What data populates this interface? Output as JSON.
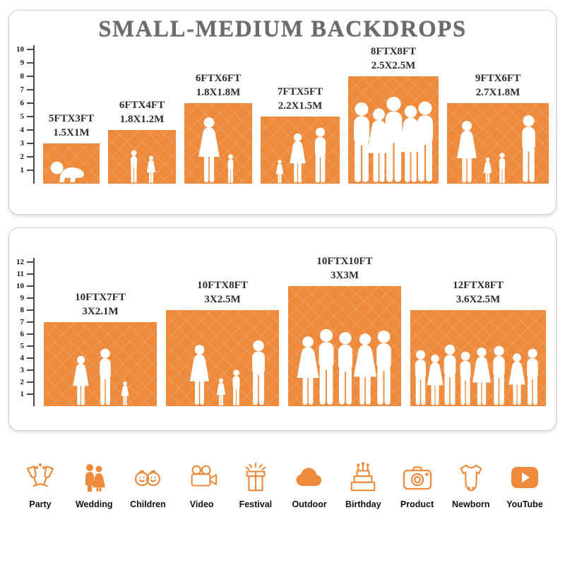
{
  "title": "SMALL-MEDIUM BACKDROPS",
  "accent_color": "#ED8A3C",
  "panels": [
    {
      "ruler": [
        "10",
        "9",
        "8",
        "7",
        "6",
        "5",
        "4",
        "3",
        "2",
        "1"
      ],
      "blocks": [
        {
          "size_ft": "5FTX3FT",
          "size_m": "1.5X1M"
        },
        {
          "size_ft": "6FTX4FT",
          "size_m": "1.8X1.2M"
        },
        {
          "size_ft": "6FTX6FT",
          "size_m": "1.8X1.8M"
        },
        {
          "size_ft": "7FTX5FT",
          "size_m": "2.2X1.5M"
        },
        {
          "size_ft": "8FTX8FT",
          "size_m": "2.5X2.5M"
        },
        {
          "size_ft": "9FTX6FT",
          "size_m": "2.7X1.8M"
        }
      ]
    },
    {
      "ruler": [
        "12",
        "11",
        "10",
        "9",
        "8",
        "7",
        "6",
        "5",
        "4",
        "3",
        "2",
        "1"
      ],
      "blocks": [
        {
          "size_ft": "10FTX7FT",
          "size_m": "3X2.1M"
        },
        {
          "size_ft": "10FTX8FT",
          "size_m": "3X2.5M"
        },
        {
          "size_ft": "10FTX10FT",
          "size_m": "3X3M"
        },
        {
          "size_ft": "12FTX8FT",
          "size_m": "3.6X2.5M"
        }
      ]
    }
  ],
  "categories": [
    {
      "label": "Party",
      "icon": "champagne-glasses-icon"
    },
    {
      "label": "Wedding",
      "icon": "wedding-couple-icon"
    },
    {
      "label": "Children",
      "icon": "children-faces-icon"
    },
    {
      "label": "Video",
      "icon": "video-camera-icon"
    },
    {
      "label": "Festival",
      "icon": "gift-fireworks-icon"
    },
    {
      "label": "Outdoor",
      "icon": "cloud-icon"
    },
    {
      "label": "Birthday",
      "icon": "birthday-cake-icon"
    },
    {
      "label": "Product",
      "icon": "photo-camera-icon"
    },
    {
      "label": "Newborn",
      "icon": "baby-onesie-icon"
    },
    {
      "label": "YouTube",
      "icon": "play-button-icon"
    }
  ]
}
